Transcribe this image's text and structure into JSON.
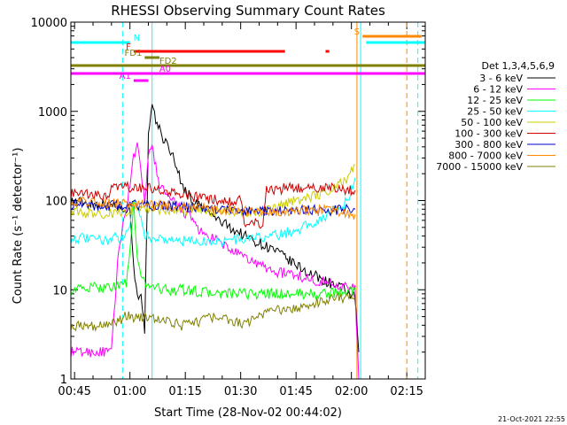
{
  "chart_data": {
    "type": "line",
    "title": "RHESSI Observing Summary Count Rates",
    "xlabel": "Start Time (28-Nov-02 00:44:02)",
    "ylabel": "Count Rate (s⁻¹ detector⁻¹)",
    "yscale": "log",
    "xlim_minutes": [
      0,
      96
    ],
    "ylim": [
      1,
      10000
    ],
    "x_ticks": [
      {
        "label": "00:45",
        "m": 1
      },
      {
        "label": "01:00",
        "m": 16
      },
      {
        "label": "01:15",
        "m": 31
      },
      {
        "label": "01:30",
        "m": 46
      },
      {
        "label": "01:45",
        "m": 61
      },
      {
        "label": "02:00",
        "m": 76
      },
      {
        "label": "02:15",
        "m": 91
      }
    ],
    "y_ticks": [
      {
        "label": "1",
        "v": 1
      },
      {
        "label": "10",
        "v": 10
      },
      {
        "label": "100",
        "v": 100
      },
      {
        "label": "1000",
        "v": 1000
      },
      {
        "label": "10000",
        "v": 10000
      }
    ],
    "legend": {
      "title": "Det 1,3,4,5,6,9",
      "placement": "right"
    },
    "series": [
      {
        "name": "3 - 6 keV",
        "color": "#000000",
        "points": [
          [
            0,
            100
          ],
          [
            10,
            90
          ],
          [
            14,
            85
          ],
          [
            16,
            80
          ],
          [
            17,
            20
          ],
          [
            18,
            8
          ],
          [
            19,
            10
          ],
          [
            20,
            3
          ],
          [
            21,
            500
          ],
          [
            22,
            1100
          ],
          [
            23,
            800
          ],
          [
            25,
            500
          ],
          [
            28,
            300
          ],
          [
            30,
            150
          ],
          [
            33,
            100
          ],
          [
            36,
            80
          ],
          [
            40,
            60
          ],
          [
            45,
            45
          ],
          [
            50,
            35
          ],
          [
            55,
            28
          ],
          [
            60,
            20
          ],
          [
            65,
            15
          ],
          [
            70,
            12
          ],
          [
            74,
            10
          ],
          [
            77,
            8
          ],
          [
            78,
            2
          ]
        ]
      },
      {
        "name": "6 - 12 keV",
        "color": "#ff00ff",
        "points": [
          [
            0,
            2
          ],
          [
            11,
            2
          ],
          [
            13,
            30
          ],
          [
            15,
            80
          ],
          [
            17,
            300
          ],
          [
            18,
            400
          ],
          [
            19,
            200
          ],
          [
            20,
            100
          ],
          [
            21,
            300
          ],
          [
            22,
            400
          ],
          [
            24,
            150
          ],
          [
            27,
            100
          ],
          [
            30,
            80
          ],
          [
            33,
            60
          ],
          [
            36,
            40
          ],
          [
            40,
            35
          ],
          [
            45,
            25
          ],
          [
            50,
            20
          ],
          [
            55,
            16
          ],
          [
            60,
            15
          ],
          [
            65,
            13
          ],
          [
            70,
            12
          ],
          [
            74,
            11
          ],
          [
            77,
            10
          ],
          [
            78,
            1
          ]
        ]
      },
      {
        "name": "12 - 25 keV",
        "color": "#00ff00",
        "points": [
          [
            0,
            10
          ],
          [
            12,
            11
          ],
          [
            15,
            12
          ],
          [
            16,
            25
          ],
          [
            17,
            100
          ],
          [
            18,
            20
          ],
          [
            19,
            15
          ],
          [
            20,
            12
          ],
          [
            25,
            10
          ],
          [
            30,
            10
          ],
          [
            40,
            9
          ],
          [
            50,
            9
          ],
          [
            60,
            9
          ],
          [
            70,
            9
          ],
          [
            77,
            10
          ]
        ]
      },
      {
        "name": "25 - 50 keV",
        "color": "#00ffff",
        "points": [
          [
            0,
            38
          ],
          [
            10,
            36
          ],
          [
            14,
            40
          ],
          [
            16,
            50
          ],
          [
            17,
            100
          ],
          [
            18,
            90
          ],
          [
            20,
            40
          ],
          [
            30,
            35
          ],
          [
            40,
            35
          ],
          [
            50,
            38
          ],
          [
            55,
            40
          ],
          [
            60,
            45
          ],
          [
            65,
            55
          ],
          [
            70,
            70
          ],
          [
            75,
            100
          ],
          [
            77,
            180
          ]
        ]
      },
      {
        "name": "50 - 100 keV",
        "color": "#cccc00",
        "points": [
          [
            0,
            75
          ],
          [
            10,
            70
          ],
          [
            16,
            75
          ],
          [
            17,
            90
          ],
          [
            20,
            80
          ],
          [
            30,
            78
          ],
          [
            40,
            75
          ],
          [
            50,
            75
          ],
          [
            55,
            80
          ],
          [
            60,
            100
          ],
          [
            65,
            110
          ],
          [
            70,
            130
          ],
          [
            75,
            180
          ],
          [
            77,
            250
          ]
        ]
      },
      {
        "name": "100 - 300 keV",
        "color": "#cc0000",
        "points": [
          [
            0,
            120
          ],
          [
            10,
            110
          ],
          [
            11,
            140
          ],
          [
            20,
            140
          ],
          [
            30,
            115
          ],
          [
            40,
            100
          ],
          [
            46,
            100
          ],
          [
            47,
            55
          ],
          [
            52,
            55
          ],
          [
            53,
            130
          ],
          [
            60,
            140
          ],
          [
            70,
            140
          ],
          [
            77,
            130
          ]
        ]
      },
      {
        "name": "300 - 800 keV",
        "color": "#0000cc",
        "points": [
          [
            0,
            90
          ],
          [
            10,
            88
          ],
          [
            20,
            90
          ],
          [
            30,
            85
          ],
          [
            40,
            80
          ],
          [
            50,
            75
          ],
          [
            60,
            80
          ],
          [
            70,
            78
          ],
          [
            77,
            80
          ]
        ]
      },
      {
        "name": "800 - 7000 keV",
        "color": "#ff8800",
        "points": [
          [
            0,
            100
          ],
          [
            10,
            95
          ],
          [
            20,
            90
          ],
          [
            30,
            85
          ],
          [
            40,
            80
          ],
          [
            50,
            75
          ],
          [
            60,
            78
          ],
          [
            70,
            78
          ],
          [
            77,
            70
          ]
        ]
      },
      {
        "name": "7000 - 15000 keV",
        "color": "#808000",
        "points": [
          [
            0,
            4
          ],
          [
            10,
            4
          ],
          [
            15,
            5
          ],
          [
            20,
            5
          ],
          [
            30,
            4
          ],
          [
            40,
            5
          ],
          [
            47,
            4
          ],
          [
            50,
            5
          ],
          [
            55,
            6
          ],
          [
            60,
            6
          ],
          [
            65,
            7
          ],
          [
            70,
            8
          ],
          [
            77,
            8
          ]
        ]
      }
    ],
    "flag_bars": [
      {
        "label": "N",
        "color": "#00ffff",
        "segments": [
          [
            0,
            16
          ],
          [
            80,
            96
          ]
        ]
      },
      {
        "label": "F",
        "color": "#ff0000",
        "segments": [
          [
            17,
            58
          ],
          [
            69,
            70
          ]
        ]
      },
      {
        "label": "FD1",
        "color": "#808000",
        "segments": [
          [
            20,
            24
          ]
        ]
      },
      {
        "label": "FD2",
        "color": "#808000",
        "segments": [
          [
            0,
            96
          ]
        ]
      },
      {
        "label": "A0",
        "color": "#ff00ff",
        "segments": [
          [
            0,
            96
          ]
        ]
      },
      {
        "label": "A1",
        "color": "#ff00ff",
        "segments": [
          [
            17,
            21
          ]
        ]
      },
      {
        "label": "S",
        "color": "#ff8800",
        "segments": [
          [
            79,
            95
          ]
        ]
      }
    ],
    "vertical_markers": [
      {
        "m": 0,
        "color": "#00ffff",
        "style": "solid"
      },
      {
        "m": 14,
        "color": "#00ffff",
        "style": "dashed"
      },
      {
        "m": 22,
        "color": "#00ffff",
        "style": "solid"
      },
      {
        "m": 77.5,
        "color": "#ff8800",
        "style": "solid"
      },
      {
        "m": 78.5,
        "color": "#00ffff",
        "style": "solid"
      },
      {
        "m": 91,
        "color": "#ff8800",
        "style": "dashed"
      },
      {
        "m": 94,
        "color": "#00ffff",
        "style": "dashed"
      }
    ]
  },
  "footer": {
    "timestamp": "21-Oct-2021 22:55"
  }
}
